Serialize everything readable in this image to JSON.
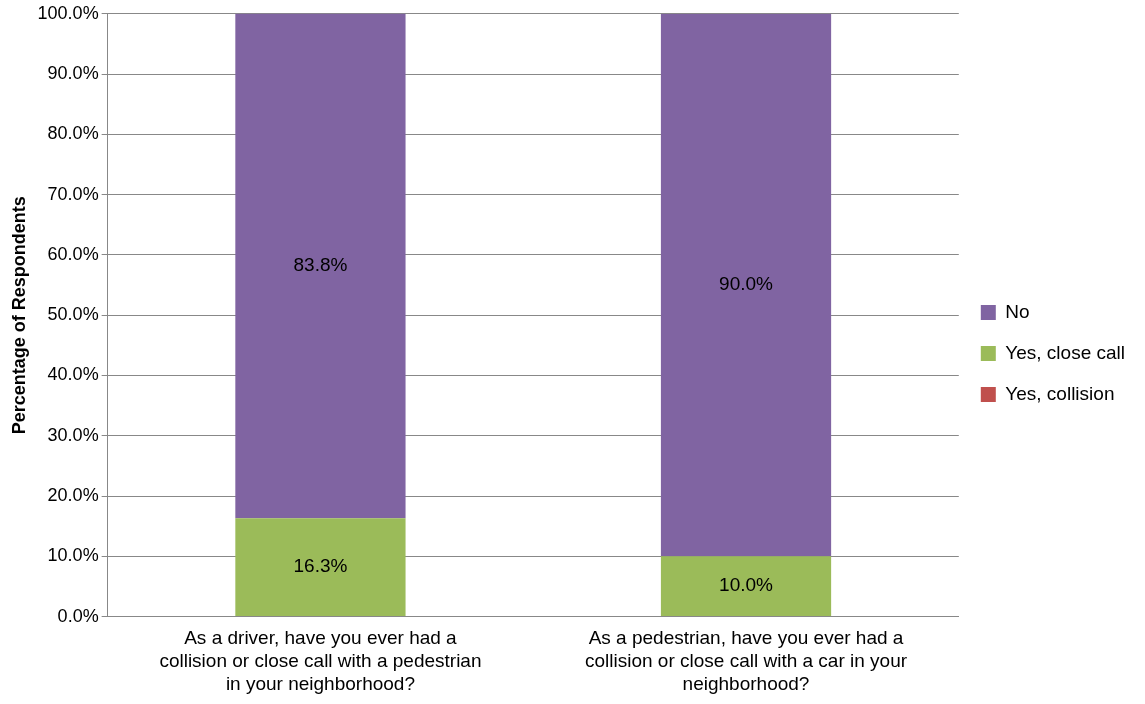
{
  "chart_data": {
    "type": "bar",
    "stacked": true,
    "ylabel": "Percentage of Respondents",
    "categories": [
      "As a driver, have you ever had a collision or close call with a pedestrian in your neighborhood?",
      "As a pedestrian, have you ever had a collision or close call with a car in your neighborhood?"
    ],
    "series": [
      {
        "name": "Yes, collision",
        "color": "#c0504d",
        "values": [
          0,
          0
        ],
        "value_labels": [
          null,
          null
        ]
      },
      {
        "name": "Yes, close call",
        "color": "#9bbb59",
        "values": [
          16.3,
          10.0
        ],
        "value_labels": [
          "16.3%",
          "10.0%"
        ]
      },
      {
        "name": "No",
        "color": "#8064a2",
        "values": [
          83.8,
          90.0
        ],
        "value_labels": [
          "83.8%",
          "90.0%"
        ]
      }
    ],
    "ylim": [
      0,
      100
    ],
    "yticks": [
      {
        "value": 0,
        "label": "0.0%"
      },
      {
        "value": 10,
        "label": "10.0%"
      },
      {
        "value": 20,
        "label": "20.0%"
      },
      {
        "value": 30,
        "label": "30.0%"
      },
      {
        "value": 40,
        "label": "40.0%"
      },
      {
        "value": 50,
        "label": "50.0%"
      },
      {
        "value": 60,
        "label": "60.0%"
      },
      {
        "value": 70,
        "label": "70.0%"
      },
      {
        "value": 80,
        "label": "80.0%"
      },
      {
        "value": 90,
        "label": "90.0%"
      },
      {
        "value": 100,
        "label": "100.0%"
      }
    ],
    "grid": "y",
    "legend": "right"
  }
}
